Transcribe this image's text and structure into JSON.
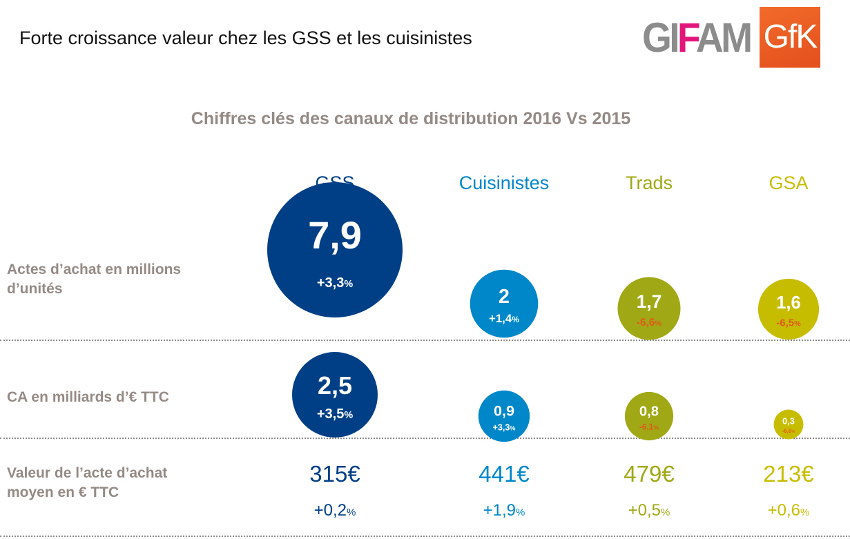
{
  "header": {
    "title": "Forte croissance valeur chez les GSS et les cuisinistes",
    "logo_gifam_pre": "GI",
    "logo_gifam_accent": "F",
    "logo_gifam_post": "AM",
    "logo_gfk": "GfK"
  },
  "chart_data": {
    "type": "bubble-table",
    "title": "Chiffres clés des canaux de distribution 2016 Vs 2015",
    "categories": [
      "GSS",
      "Cuisinistes",
      "Trads",
      "GSA"
    ],
    "category_colors": [
      "#003f85",
      "#0087c9",
      "#a0a815",
      "#c7bd00"
    ],
    "rows": [
      {
        "label": "Actes d’achat en millions d’unités",
        "values": [
          7.9,
          2,
          1.7,
          1.6
        ],
        "value_labels": [
          "7,9",
          "2",
          "1,7",
          "1,6"
        ],
        "changes": [
          "+3,3",
          "+1,4",
          "-6,6",
          "-6,5"
        ],
        "change_unit": "%"
      },
      {
        "label": "CA en milliards d’€ TTC",
        "values": [
          2.5,
          0.9,
          0.8,
          0.3
        ],
        "value_labels": [
          "2,5",
          "0,9",
          "0,8",
          "0,3"
        ],
        "changes": [
          "+3,5",
          "+3,3",
          "-6,1",
          "-6,0"
        ],
        "change_unit": "%"
      },
      {
        "label": "Valeur de l’acte d’achat moyen en € TTC",
        "values": [
          315,
          441,
          479,
          213
        ],
        "value_labels": [
          "315€",
          "441€",
          "479€",
          "213€"
        ],
        "changes": [
          "+0,2",
          "+1,9",
          "+0,5",
          "+0,6"
        ],
        "change_unit": "%"
      }
    ],
    "colors": {
      "positive_change": "#ffffff",
      "negative_change": "#e05a1a"
    }
  }
}
